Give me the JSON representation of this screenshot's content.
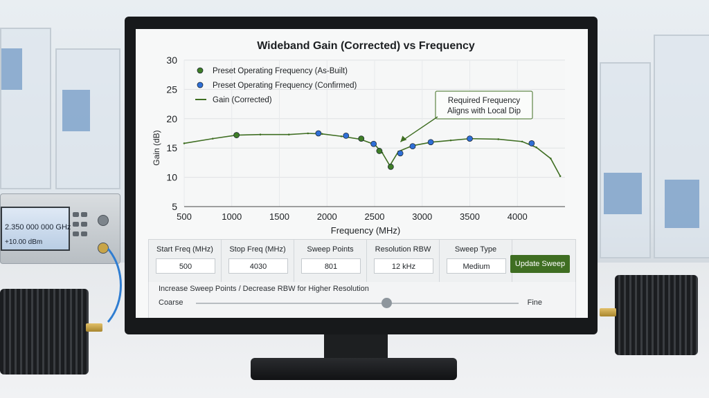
{
  "signal_generator": {
    "frequency": "2.350 000 000 GHz",
    "amplitude": "+10.00 dBm"
  },
  "chart_data": {
    "type": "line",
    "title": "Wideband Gain (Corrected) vs Frequency",
    "xlabel": "Frequency (MHz)",
    "ylabel": "Gain (dB)",
    "xlim": [
      500,
      4500
    ],
    "ylim": [
      5,
      30
    ],
    "xticks": [
      500,
      1000,
      1500,
      2000,
      2500,
      3000,
      3500,
      4000
    ],
    "yticks": [
      5,
      10,
      15,
      20,
      25,
      30
    ],
    "grid": true,
    "legend_position": "top-left",
    "series": [
      {
        "name": "Gain (Corrected)",
        "kind": "line",
        "color": "#3f6e22",
        "x": [
          500,
          800,
          1050,
          1300,
          1600,
          1800,
          1950,
          2150,
          2350,
          2500,
          2580,
          2660,
          2750,
          2900,
          3100,
          3300,
          3500,
          3800,
          4050,
          4200,
          4350,
          4450
        ],
        "y": [
          15.8,
          16.6,
          17.2,
          17.3,
          17.3,
          17.5,
          17.4,
          17.0,
          16.5,
          15.6,
          14.2,
          12.0,
          14.4,
          15.4,
          16.0,
          16.3,
          16.6,
          16.5,
          16.1,
          15.1,
          13.2,
          10.2
        ]
      },
      {
        "name": "Preset Operating Frequency (As-Built)",
        "kind": "points",
        "color": "#3f7e27",
        "x": [
          1050,
          2360,
          2550,
          2670
        ],
        "y": [
          17.2,
          16.6,
          14.5,
          11.8
        ]
      },
      {
        "name": "Preset Operating Frequency (Confirmed)",
        "kind": "points",
        "color": "#2f6fd6",
        "x": [
          1910,
          2200,
          2490,
          2770,
          2900,
          3090,
          3500,
          4150
        ],
        "y": [
          17.5,
          17.1,
          15.7,
          14.1,
          15.3,
          16.0,
          16.6,
          15.8
        ]
      }
    ],
    "annotation": {
      "lines": [
        "Required Frequency",
        "Aligns with Local Dip"
      ],
      "target_x": 2670,
      "target_y": 11.8
    }
  },
  "controls": {
    "start_freq": {
      "label": "Start Freq (MHz)",
      "value": "500"
    },
    "stop_freq": {
      "label": "Stop Freq (MHz)",
      "value": "4030"
    },
    "sweep_points": {
      "label": "Sweep Points",
      "value": "801"
    },
    "rbw": {
      "label": "Resolution RBW",
      "value": "12 kHz"
    },
    "sweep_type": {
      "label": "Sweep Type",
      "value": "Medium"
    },
    "update_label": "Update Sweep"
  },
  "slider": {
    "caption": "Increase Sweep Points / Decrease RBW for Higher Resolution",
    "min_label": "Coarse",
    "max_label": "Fine",
    "position_fraction": 0.59
  }
}
